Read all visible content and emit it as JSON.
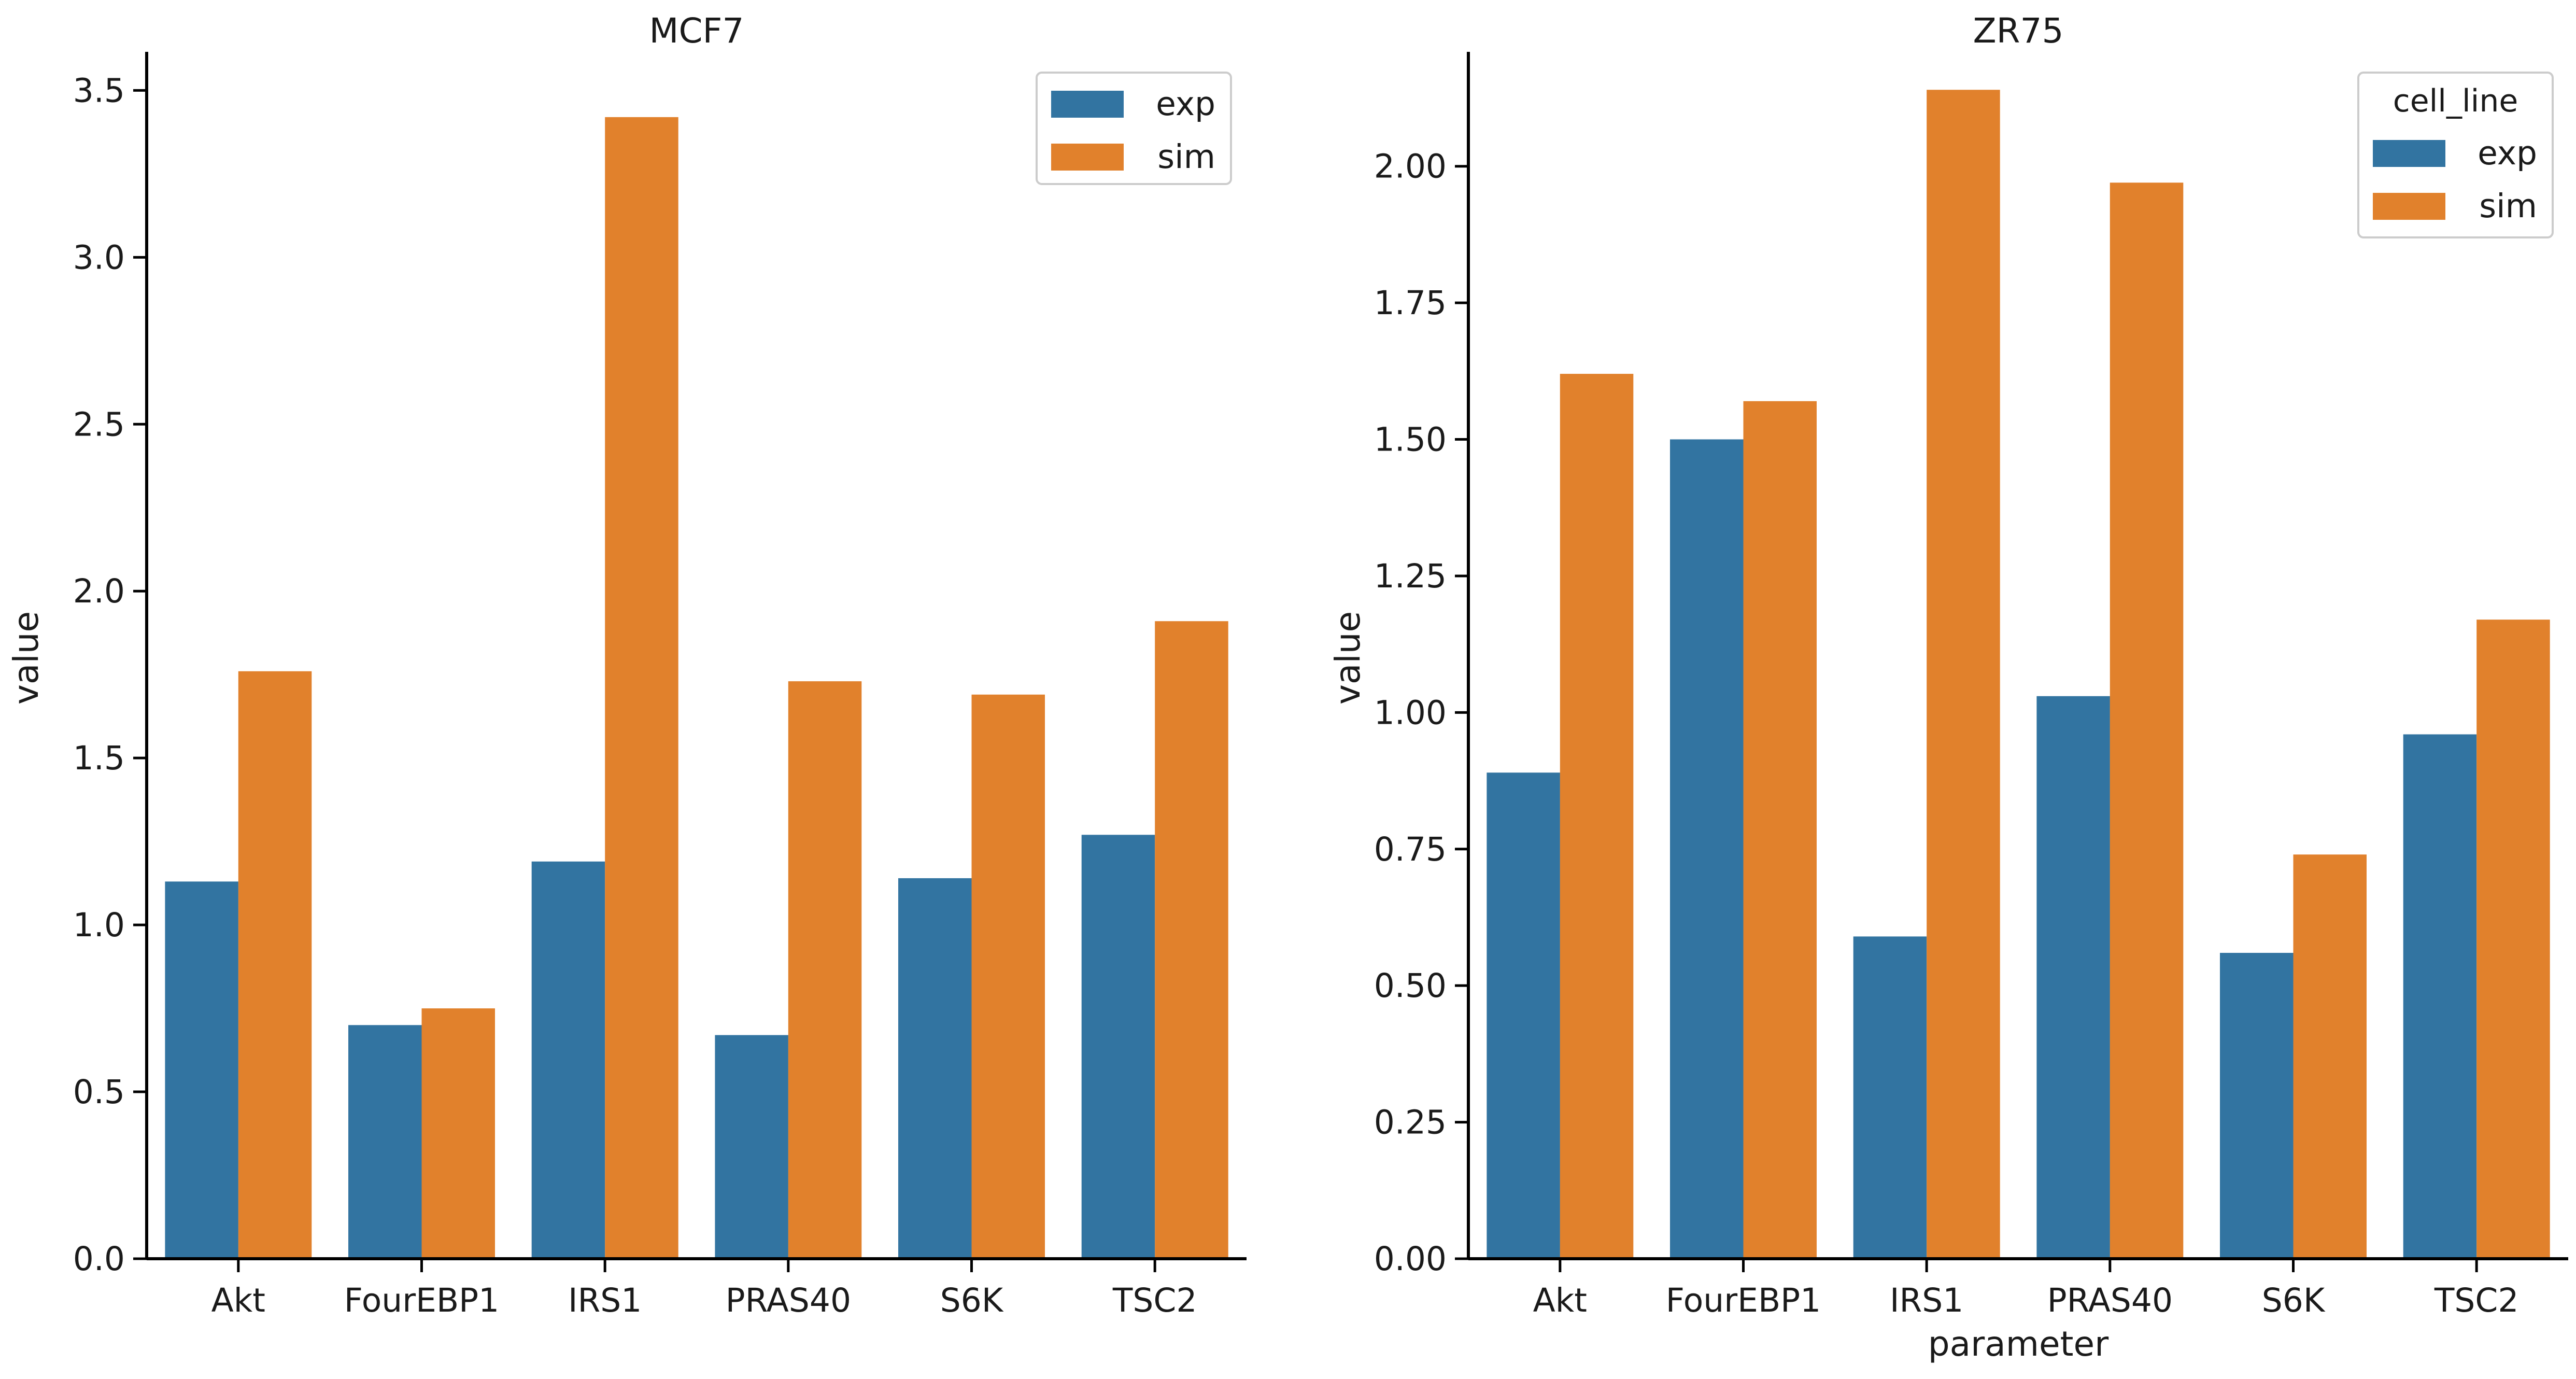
{
  "colors": {
    "exp": "#3274a1",
    "sim": "#e1812c"
  },
  "chart_data": [
    {
      "type": "bar",
      "title": "MCF7",
      "xlabel": "",
      "ylabel": "value",
      "ylim": [
        0,
        3.6
      ],
      "yticks": [
        "0.0",
        "0.5",
        "1.0",
        "1.5",
        "2.0",
        "2.5",
        "3.0",
        "3.5"
      ],
      "ytick_values": [
        0,
        0.5,
        1.0,
        1.5,
        2.0,
        2.5,
        3.0,
        3.5
      ],
      "categories": [
        "Akt",
        "FourEBP1",
        "IRS1",
        "PRAS40",
        "S6K",
        "TSC2"
      ],
      "legend": {
        "title": "",
        "placement": "top-right"
      },
      "series": [
        {
          "name": "exp",
          "values": [
            1.13,
            0.7,
            1.19,
            0.67,
            1.14,
            1.27
          ]
        },
        {
          "name": "sim",
          "values": [
            1.76,
            0.75,
            3.42,
            1.73,
            1.69,
            1.91
          ]
        }
      ]
    },
    {
      "type": "bar",
      "title": "ZR75",
      "xlabel": "parameter",
      "ylabel": "value",
      "ylim": [
        0,
        2.2
      ],
      "yticks": [
        "0.00",
        "0.25",
        "0.50",
        "0.75",
        "1.00",
        "1.25",
        "1.50",
        "1.75",
        "2.00"
      ],
      "ytick_values": [
        0,
        0.25,
        0.5,
        0.75,
        1.0,
        1.25,
        1.5,
        1.75,
        2.0
      ],
      "categories": [
        "Akt",
        "FourEBP1",
        "IRS1",
        "PRAS40",
        "S6K",
        "TSC2"
      ],
      "legend": {
        "title": "cell_line",
        "placement": "top-right"
      },
      "series": [
        {
          "name": "exp",
          "values": [
            0.89,
            1.5,
            0.59,
            1.03,
            0.56,
            0.96
          ]
        },
        {
          "name": "sim",
          "values": [
            1.62,
            1.57,
            2.14,
            1.97,
            0.74,
            1.17
          ]
        }
      ]
    }
  ]
}
